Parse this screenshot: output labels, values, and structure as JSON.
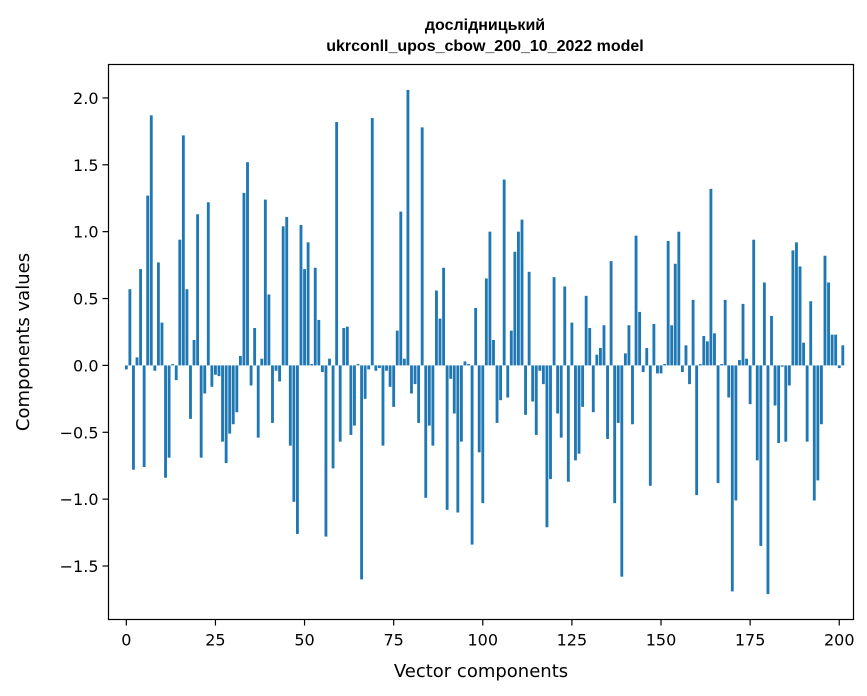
{
  "chart_data": {
    "type": "bar",
    "title": "дослідницький",
    "subtitle": "ukrconll_upos_cbow_200_10_2022 model",
    "xlabel": "Vector components",
    "ylabel": "Components values",
    "xlim": [
      -5,
      204
    ],
    "ylim": [
      -1.9,
      2.25
    ],
    "xticks": [
      0,
      25,
      50,
      75,
      100,
      125,
      150,
      175,
      200
    ],
    "yticks": [
      -1.5,
      -1.0,
      -0.5,
      0.0,
      0.5,
      1.0,
      1.5,
      2.0
    ],
    "ytick_labels": [
      "−1.5",
      "−1.0",
      "−0.5",
      "0.0",
      "0.5",
      "1.0",
      "1.5",
      "2.0"
    ],
    "bar_color": "#1f77b4",
    "grid": false,
    "values": [
      -0.03,
      0.57,
      -0.78,
      0.06,
      0.72,
      -0.76,
      1.27,
      1.87,
      -0.04,
      0.77,
      0.32,
      -0.84,
      -0.69,
      0.01,
      -0.11,
      0.94,
      1.72,
      0.57,
      -0.4,
      0.19,
      1.13,
      -0.69,
      -0.21,
      1.22,
      -0.16,
      -0.07,
      -0.08,
      -0.57,
      -0.73,
      -0.51,
      -0.44,
      -0.35,
      0.07,
      1.29,
      1.52,
      -0.15,
      0.28,
      -0.54,
      0.05,
      1.24,
      0.53,
      -0.43,
      -0.04,
      -0.12,
      1.04,
      1.11,
      -0.6,
      -1.02,
      -1.26,
      1.05,
      0.72,
      0.92,
      0.01,
      0.73,
      0.34,
      -0.05,
      -1.28,
      0.05,
      -0.77,
      1.82,
      -0.57,
      0.28,
      0.29,
      -0.52,
      -0.45,
      0.01,
      -1.6,
      -0.25,
      -0.03,
      1.85,
      -0.04,
      -0.02,
      -0.6,
      -0.04,
      -0.16,
      -0.31,
      0.26,
      1.15,
      0.05,
      2.06,
      -0.21,
      -0.14,
      -0.43,
      1.78,
      -0.99,
      -0.45,
      -0.6,
      0.56,
      0.35,
      0.73,
      -1.08,
      -0.1,
      -0.36,
      -1.1,
      -0.57,
      0.03,
      0.01,
      -1.34,
      0.43,
      -0.65,
      -1.03,
      0.65,
      1.0,
      0.19,
      -0.43,
      -0.26,
      1.39,
      -0.24,
      0.26,
      0.85,
      1.0,
      1.09,
      -0.37,
      0.7,
      -0.27,
      -0.52,
      -0.04,
      -0.14,
      -1.21,
      -0.85,
      0.66,
      -0.36,
      -0.54,
      0.59,
      -0.87,
      0.32,
      -0.71,
      -0.66,
      -0.31,
      0.52,
      0.28,
      -0.35,
      0.08,
      0.13,
      0.3,
      -0.55,
      0.78,
      -1.03,
      -0.43,
      -1.58,
      0.09,
      0.3,
      -0.44,
      0.97,
      0.4,
      -0.05,
      0.13,
      -0.9,
      0.31,
      -0.06,
      -0.06,
      0.01,
      0.93,
      0.3,
      0.76,
      1.0,
      -0.05,
      0.15,
      -0.14,
      0.49,
      -0.97,
      0.01,
      0.22,
      0.18,
      1.32,
      0.24,
      -0.88,
      0.01,
      0.49,
      -0.24,
      -1.69,
      -1.01,
      0.04,
      0.46,
      0.05,
      -0.29,
      0.94,
      -0.71,
      -1.35,
      0.62,
      -1.71,
      0.37,
      -0.3,
      -0.58,
      -0.01,
      -0.57,
      -0.15,
      0.86,
      0.92,
      0.74,
      0.17,
      -0.57,
      0.48,
      -1.01,
      -0.86,
      -0.44,
      0.82,
      0.62,
      0.23,
      0.23,
      -0.02,
      0.15
    ]
  }
}
